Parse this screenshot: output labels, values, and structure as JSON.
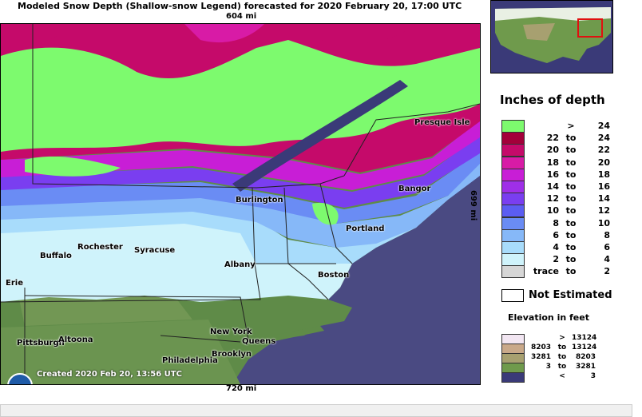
{
  "title": "Modeled Snow Depth (Shallow-snow Legend) forecasted for 2020 February 20, 17:00 UTC",
  "scale_top": "604 mi",
  "scale_bottom": "720 mi",
  "scale_side": "699 mi",
  "created": "Created 2020 Feb 20, 13:56 UTC",
  "logo": "NOAA",
  "cities": [
    "Presque Isle",
    "Burlington",
    "Bangor",
    "Portland",
    "Rochester",
    "Syracuse",
    "Buffalo",
    "Albany",
    "Boston",
    "Erie",
    "New York",
    "Queens",
    "Brooklyn",
    "Pittsburgh",
    "Altoona",
    "Philadelphia"
  ],
  "legend": {
    "title": "Inches of depth",
    "rows": [
      {
        "lo": "",
        "to": ">",
        "hi": "24",
        "color": "#7dfa6e"
      },
      {
        "lo": "22",
        "to": "to",
        "hi": "24",
        "color": "#a3003a"
      },
      {
        "lo": "20",
        "to": "to",
        "hi": "22",
        "color": "#c50a6a"
      },
      {
        "lo": "18",
        "to": "to",
        "hi": "20",
        "color": "#d81ba6"
      },
      {
        "lo": "16",
        "to": "to",
        "hi": "18",
        "color": "#c81ed6"
      },
      {
        "lo": "14",
        "to": "to",
        "hi": "16",
        "color": "#9f2fe8"
      },
      {
        "lo": "12",
        "to": "to",
        "hi": "14",
        "color": "#7a3ef0"
      },
      {
        "lo": "10",
        "to": "to",
        "hi": "12",
        "color": "#5b5df2"
      },
      {
        "lo": "8",
        "to": "to",
        "hi": "10",
        "color": "#6a8cf4"
      },
      {
        "lo": "6",
        "to": "to",
        "hi": "8",
        "color": "#86b8f8"
      },
      {
        "lo": "4",
        "to": "to",
        "hi": "6",
        "color": "#a8dcfb"
      },
      {
        "lo": "2",
        "to": "to",
        "hi": "4",
        "color": "#cff3fb"
      },
      {
        "lo": "trace",
        "to": "to",
        "hi": "2",
        "color": "#d6d6d6"
      }
    ],
    "not_estimated": "Not Estimated",
    "elevation_title": "Elevation in feet",
    "elevation": [
      {
        "lo": "",
        "to": ">",
        "hi": "13124",
        "color": "#f2e6f2"
      },
      {
        "lo": "8203",
        "to": "to",
        "hi": "13124",
        "color": "#c9a98a"
      },
      {
        "lo": "3281",
        "to": "to",
        "hi": "8203",
        "color": "#a7a070"
      },
      {
        "lo": "3",
        "to": "to",
        "hi": "3281",
        "color": "#6f9a4c"
      },
      {
        "lo": "",
        "to": "<",
        "hi": "3",
        "color": "#3a3a78"
      }
    ]
  }
}
